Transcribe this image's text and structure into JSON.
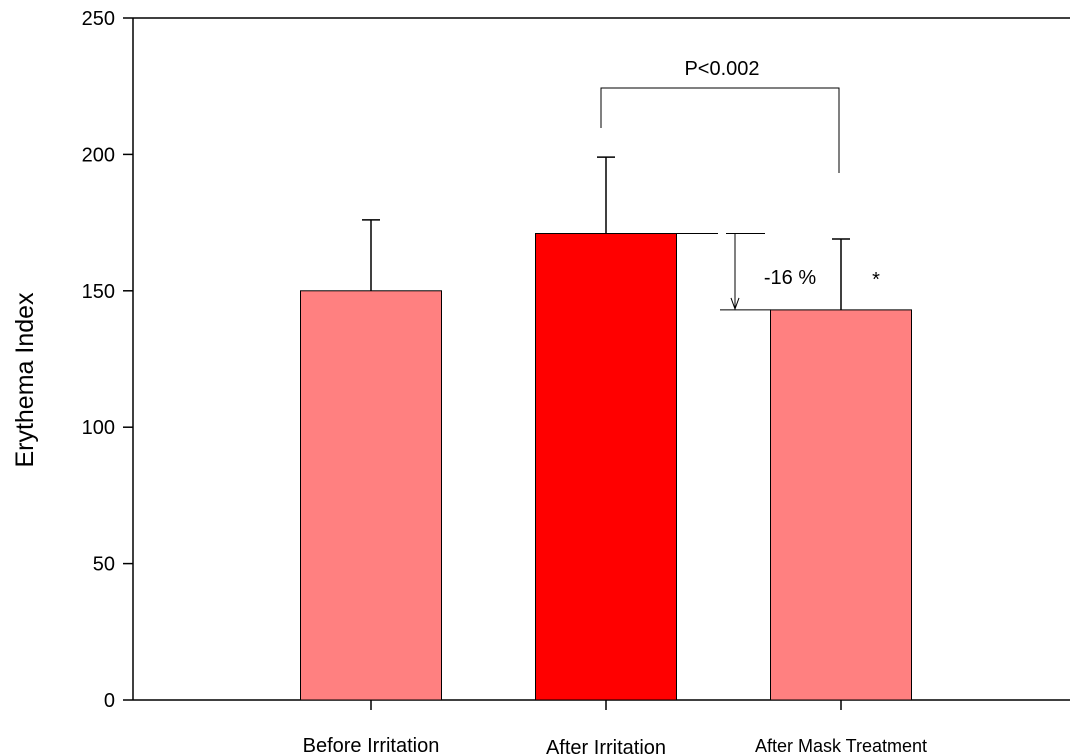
{
  "chart_data": {
    "type": "bar",
    "title": "",
    "xlabel": "",
    "ylabel": "Erythema Index",
    "ylim": [
      0,
      250
    ],
    "yticks": [
      0,
      50,
      100,
      150,
      200,
      250
    ],
    "ytick_labels": [
      "0",
      "50",
      "100",
      "150",
      "200",
      "250"
    ],
    "grid": false,
    "categories": [
      "Before Irritation",
      "After Irritation",
      "After Mask Treatment"
    ],
    "values": [
      150,
      171,
      143
    ],
    "error_upper": [
      176,
      199,
      169
    ],
    "bar_colors": [
      "#ff8080",
      "#ff0000",
      "#ff8080"
    ],
    "annotations": {
      "bracket_label": "P<0.002",
      "change_label": "-16 %",
      "significance_marker": "*"
    }
  }
}
